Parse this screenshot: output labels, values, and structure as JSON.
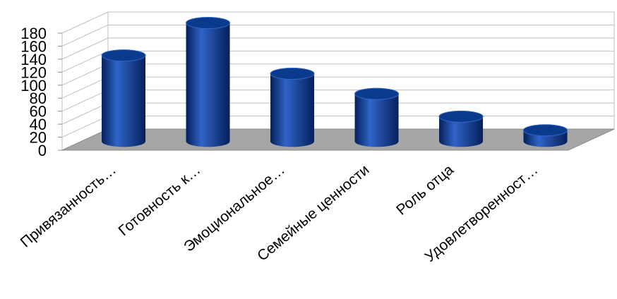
{
  "colors": {
    "bar_body": "#0a3a8c",
    "bar_highlight": "#2f64c8",
    "bar_shadow": "#05205a",
    "floor": "#a6a6a6",
    "grid": "#bfbfbf",
    "axis": "#8c8c8c"
  },
  "chart_data": {
    "type": "bar",
    "style": "3d-cylinder",
    "title": "",
    "xlabel": "",
    "ylabel": "",
    "ylim": [
      0,
      180
    ],
    "ytick_step": 20,
    "grid": true,
    "legend": "none",
    "categories": [
      "Привязанность…",
      "Готовность к…",
      "Эмоциональное…",
      "Семейные ценности",
      "Роль отца",
      "Удовлетворенност…"
    ],
    "values": [
      132,
      182,
      104,
      73,
      38,
      17
    ]
  }
}
